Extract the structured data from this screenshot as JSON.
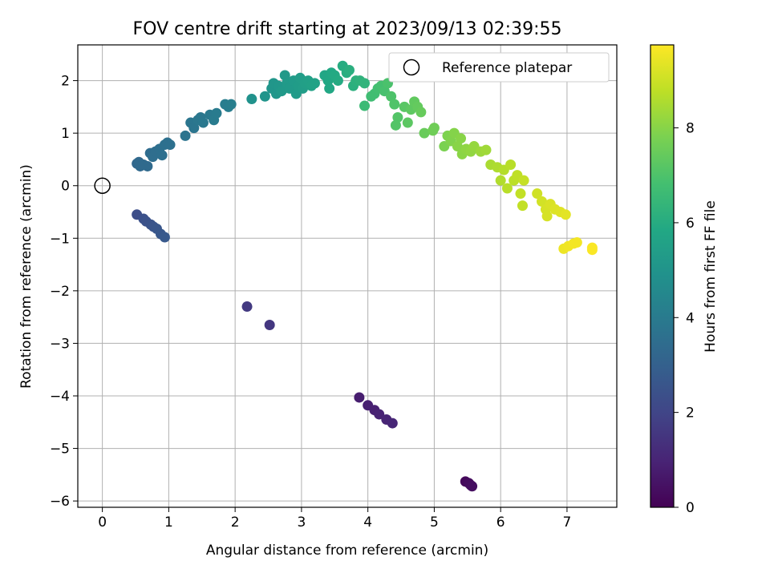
{
  "chart_data": {
    "type": "scatter",
    "title": "FOV centre drift starting at 2023/09/13 02:39:55",
    "xlabel": "Angular distance from reference (arcmin)",
    "ylabel": "Rotation from reference (arcmin)",
    "xlim": [
      -0.37,
      7.75
    ],
    "ylim": [
      -6.12,
      2.68
    ],
    "xticks": [
      "0",
      "1",
      "2",
      "3",
      "4",
      "5",
      "6",
      "7"
    ],
    "yticks": [
      "−6",
      "−5",
      "−4",
      "−3",
      "−2",
      "−1",
      "0",
      "1",
      "2"
    ],
    "xtick_values": [
      0,
      1,
      2,
      3,
      4,
      5,
      6,
      7
    ],
    "ytick_values": [
      -6,
      -5,
      -4,
      -3,
      -2,
      -1,
      0,
      1,
      2
    ],
    "grid": true,
    "legend": {
      "position": "top-right",
      "entries": [
        "Reference platepar"
      ]
    },
    "reference_point": {
      "x": 0,
      "y": 0,
      "label": "Reference platepar"
    },
    "colorbar": {
      "label": "Hours from first FF file",
      "colormap": "viridis",
      "range": [
        0,
        9.75
      ],
      "ticks": [
        "0",
        "2",
        "4",
        "6",
        "8"
      ],
      "tick_values": [
        0,
        2,
        4,
        6,
        8
      ]
    },
    "points": [
      {
        "x": 5.47,
        "y": -5.63,
        "t": 0.2
      },
      {
        "x": 5.55,
        "y": -5.7,
        "t": 0.25
      },
      {
        "x": 5.52,
        "y": -5.66,
        "t": 0.3
      },
      {
        "x": 5.57,
        "y": -5.72,
        "t": 0.35
      },
      {
        "x": 3.87,
        "y": -4.03,
        "t": 0.8
      },
      {
        "x": 4.0,
        "y": -4.18,
        "t": 0.85
      },
      {
        "x": 4.1,
        "y": -4.27,
        "t": 0.9
      },
      {
        "x": 4.17,
        "y": -4.35,
        "t": 0.95
      },
      {
        "x": 4.28,
        "y": -4.45,
        "t": 1.0
      },
      {
        "x": 4.37,
        "y": -4.52,
        "t": 1.05
      },
      {
        "x": 2.18,
        "y": -2.3,
        "t": 1.65
      },
      {
        "x": 2.52,
        "y": -2.65,
        "t": 1.55
      },
      {
        "x": 0.52,
        "y": -0.55,
        "t": 2.3
      },
      {
        "x": 0.62,
        "y": -0.63,
        "t": 2.4
      },
      {
        "x": 0.66,
        "y": -0.68,
        "t": 2.45
      },
      {
        "x": 0.73,
        "y": -0.74,
        "t": 2.5
      },
      {
        "x": 0.77,
        "y": -0.78,
        "t": 2.55
      },
      {
        "x": 0.82,
        "y": -0.82,
        "t": 2.6
      },
      {
        "x": 0.88,
        "y": -0.92,
        "t": 2.65
      },
      {
        "x": 0.94,
        "y": -0.98,
        "t": 2.7
      },
      {
        "x": 0.52,
        "y": 0.42,
        "t": 3.25
      },
      {
        "x": 0.55,
        "y": 0.45,
        "t": 3.3
      },
      {
        "x": 0.57,
        "y": 0.37,
        "t": 3.3
      },
      {
        "x": 0.62,
        "y": 0.4,
        "t": 3.35
      },
      {
        "x": 0.68,
        "y": 0.37,
        "t": 3.35
      },
      {
        "x": 0.72,
        "y": 0.62,
        "t": 3.45
      },
      {
        "x": 0.76,
        "y": 0.55,
        "t": 3.5
      },
      {
        "x": 0.8,
        "y": 0.65,
        "t": 3.5
      },
      {
        "x": 0.86,
        "y": 0.7,
        "t": 3.55
      },
      {
        "x": 0.9,
        "y": 0.58,
        "t": 3.55
      },
      {
        "x": 0.94,
        "y": 0.78,
        "t": 3.6
      },
      {
        "x": 0.98,
        "y": 0.82,
        "t": 3.6
      },
      {
        "x": 1.02,
        "y": 0.78,
        "t": 3.6
      },
      {
        "x": 1.25,
        "y": 0.95,
        "t": 3.75
      },
      {
        "x": 1.33,
        "y": 1.2,
        "t": 3.8
      },
      {
        "x": 1.38,
        "y": 1.1,
        "t": 3.8
      },
      {
        "x": 1.44,
        "y": 1.25,
        "t": 3.85
      },
      {
        "x": 1.48,
        "y": 1.3,
        "t": 3.85
      },
      {
        "x": 1.52,
        "y": 1.2,
        "t": 3.9
      },
      {
        "x": 1.62,
        "y": 1.35,
        "t": 3.95
      },
      {
        "x": 1.68,
        "y": 1.25,
        "t": 4.0
      },
      {
        "x": 1.72,
        "y": 1.38,
        "t": 4.0
      },
      {
        "x": 1.85,
        "y": 1.55,
        "t": 4.1
      },
      {
        "x": 1.9,
        "y": 1.5,
        "t": 4.1
      },
      {
        "x": 1.94,
        "y": 1.55,
        "t": 4.15
      },
      {
        "x": 2.25,
        "y": 1.65,
        "t": 4.9
      },
      {
        "x": 2.45,
        "y": 1.7,
        "t": 5.0
      },
      {
        "x": 2.55,
        "y": 1.85,
        "t": 5.05
      },
      {
        "x": 2.58,
        "y": 1.95,
        "t": 5.1
      },
      {
        "x": 2.62,
        "y": 1.75,
        "t": 5.1
      },
      {
        "x": 2.65,
        "y": 1.9,
        "t": 5.15
      },
      {
        "x": 2.7,
        "y": 1.8,
        "t": 5.2
      },
      {
        "x": 2.75,
        "y": 2.1,
        "t": 5.2
      },
      {
        "x": 2.78,
        "y": 1.95,
        "t": 5.25
      },
      {
        "x": 2.82,
        "y": 1.85,
        "t": 5.25
      },
      {
        "x": 2.88,
        "y": 2.0,
        "t": 5.3
      },
      {
        "x": 2.92,
        "y": 1.75,
        "t": 5.3
      },
      {
        "x": 2.95,
        "y": 1.9,
        "t": 5.35
      },
      {
        "x": 2.98,
        "y": 2.05,
        "t": 5.4
      },
      {
        "x": 3.02,
        "y": 1.85,
        "t": 5.4
      },
      {
        "x": 3.05,
        "y": 1.95,
        "t": 5.45
      },
      {
        "x": 3.1,
        "y": 2.0,
        "t": 5.5
      },
      {
        "x": 3.15,
        "y": 1.9,
        "t": 5.55
      },
      {
        "x": 3.2,
        "y": 1.95,
        "t": 5.6
      },
      {
        "x": 3.35,
        "y": 2.1,
        "t": 5.75
      },
      {
        "x": 3.4,
        "y": 2.0,
        "t": 5.8
      },
      {
        "x": 3.42,
        "y": 1.85,
        "t": 5.8
      },
      {
        "x": 3.45,
        "y": 2.15,
        "t": 5.85
      },
      {
        "x": 3.5,
        "y": 2.1,
        "t": 5.9
      },
      {
        "x": 3.55,
        "y": 2.0,
        "t": 5.95
      },
      {
        "x": 3.62,
        "y": 2.28,
        "t": 6.0
      },
      {
        "x": 3.68,
        "y": 2.15,
        "t": 6.05
      },
      {
        "x": 3.72,
        "y": 2.2,
        "t": 6.1
      },
      {
        "x": 3.78,
        "y": 1.9,
        "t": 6.15
      },
      {
        "x": 3.82,
        "y": 2.0,
        "t": 6.2
      },
      {
        "x": 3.88,
        "y": 2.0,
        "t": 6.25
      },
      {
        "x": 3.95,
        "y": 1.95,
        "t": 6.3
      },
      {
        "x": 3.95,
        "y": 1.52,
        "t": 6.6
      },
      {
        "x": 4.05,
        "y": 1.7,
        "t": 6.7
      },
      {
        "x": 4.1,
        "y": 1.75,
        "t": 6.75
      },
      {
        "x": 4.15,
        "y": 1.85,
        "t": 6.8
      },
      {
        "x": 4.2,
        "y": 1.9,
        "t": 6.85
      },
      {
        "x": 4.25,
        "y": 1.8,
        "t": 6.9
      },
      {
        "x": 4.3,
        "y": 1.95,
        "t": 6.95
      },
      {
        "x": 4.35,
        "y": 1.7,
        "t": 7.0
      },
      {
        "x": 4.4,
        "y": 1.55,
        "t": 7.05
      },
      {
        "x": 4.45,
        "y": 1.3,
        "t": 7.1
      },
      {
        "x": 4.42,
        "y": 1.15,
        "t": 7.1
      },
      {
        "x": 4.55,
        "y": 1.5,
        "t": 7.2
      },
      {
        "x": 4.6,
        "y": 1.2,
        "t": 7.25
      },
      {
        "x": 4.65,
        "y": 1.45,
        "t": 7.3
      },
      {
        "x": 4.7,
        "y": 1.6,
        "t": 7.35
      },
      {
        "x": 4.75,
        "y": 1.5,
        "t": 7.4
      },
      {
        "x": 4.8,
        "y": 1.4,
        "t": 7.45
      },
      {
        "x": 4.85,
        "y": 1.0,
        "t": 7.5
      },
      {
        "x": 4.98,
        "y": 1.05,
        "t": 7.6
      },
      {
        "x": 5.0,
        "y": 1.1,
        "t": 7.6
      },
      {
        "x": 5.15,
        "y": 0.75,
        "t": 7.8
      },
      {
        "x": 5.2,
        "y": 0.95,
        "t": 7.85
      },
      {
        "x": 5.25,
        "y": 0.85,
        "t": 7.9
      },
      {
        "x": 5.3,
        "y": 1.0,
        "t": 7.95
      },
      {
        "x": 5.35,
        "y": 0.75,
        "t": 8.0
      },
      {
        "x": 5.4,
        "y": 0.9,
        "t": 8.0
      },
      {
        "x": 5.42,
        "y": 0.6,
        "t": 8.05
      },
      {
        "x": 5.48,
        "y": 0.7,
        "t": 8.1
      },
      {
        "x": 5.55,
        "y": 0.65,
        "t": 8.15
      },
      {
        "x": 5.6,
        "y": 0.75,
        "t": 8.2
      },
      {
        "x": 5.7,
        "y": 0.65,
        "t": 8.3
      },
      {
        "x": 5.78,
        "y": 0.68,
        "t": 8.35
      },
      {
        "x": 5.85,
        "y": 0.4,
        "t": 8.5
      },
      {
        "x": 5.95,
        "y": 0.35,
        "t": 8.55
      },
      {
        "x": 6.0,
        "y": 0.1,
        "t": 8.6
      },
      {
        "x": 6.05,
        "y": 0.3,
        "t": 8.65
      },
      {
        "x": 6.1,
        "y": -0.05,
        "t": 8.7
      },
      {
        "x": 6.15,
        "y": 0.4,
        "t": 8.7
      },
      {
        "x": 6.2,
        "y": 0.1,
        "t": 8.75
      },
      {
        "x": 6.25,
        "y": 0.2,
        "t": 8.8
      },
      {
        "x": 6.3,
        "y": -0.15,
        "t": 8.85
      },
      {
        "x": 6.33,
        "y": -0.38,
        "t": 8.85
      },
      {
        "x": 6.35,
        "y": 0.1,
        "t": 8.9
      },
      {
        "x": 6.55,
        "y": -0.15,
        "t": 9.05
      },
      {
        "x": 6.62,
        "y": -0.3,
        "t": 9.1
      },
      {
        "x": 6.68,
        "y": -0.45,
        "t": 9.15
      },
      {
        "x": 6.7,
        "y": -0.58,
        "t": 9.15
      },
      {
        "x": 6.75,
        "y": -0.35,
        "t": 9.2
      },
      {
        "x": 6.82,
        "y": -0.45,
        "t": 9.25
      },
      {
        "x": 6.9,
        "y": -0.5,
        "t": 9.3
      },
      {
        "x": 6.98,
        "y": -0.55,
        "t": 9.35
      },
      {
        "x": 6.95,
        "y": -1.2,
        "t": 9.5
      },
      {
        "x": 7.02,
        "y": -1.15,
        "t": 9.55
      },
      {
        "x": 7.1,
        "y": -1.1,
        "t": 9.6
      },
      {
        "x": 7.15,
        "y": -1.08,
        "t": 9.6
      },
      {
        "x": 7.38,
        "y": -1.18,
        "t": 9.7
      },
      {
        "x": 7.38,
        "y": -1.22,
        "t": 9.7
      }
    ]
  }
}
